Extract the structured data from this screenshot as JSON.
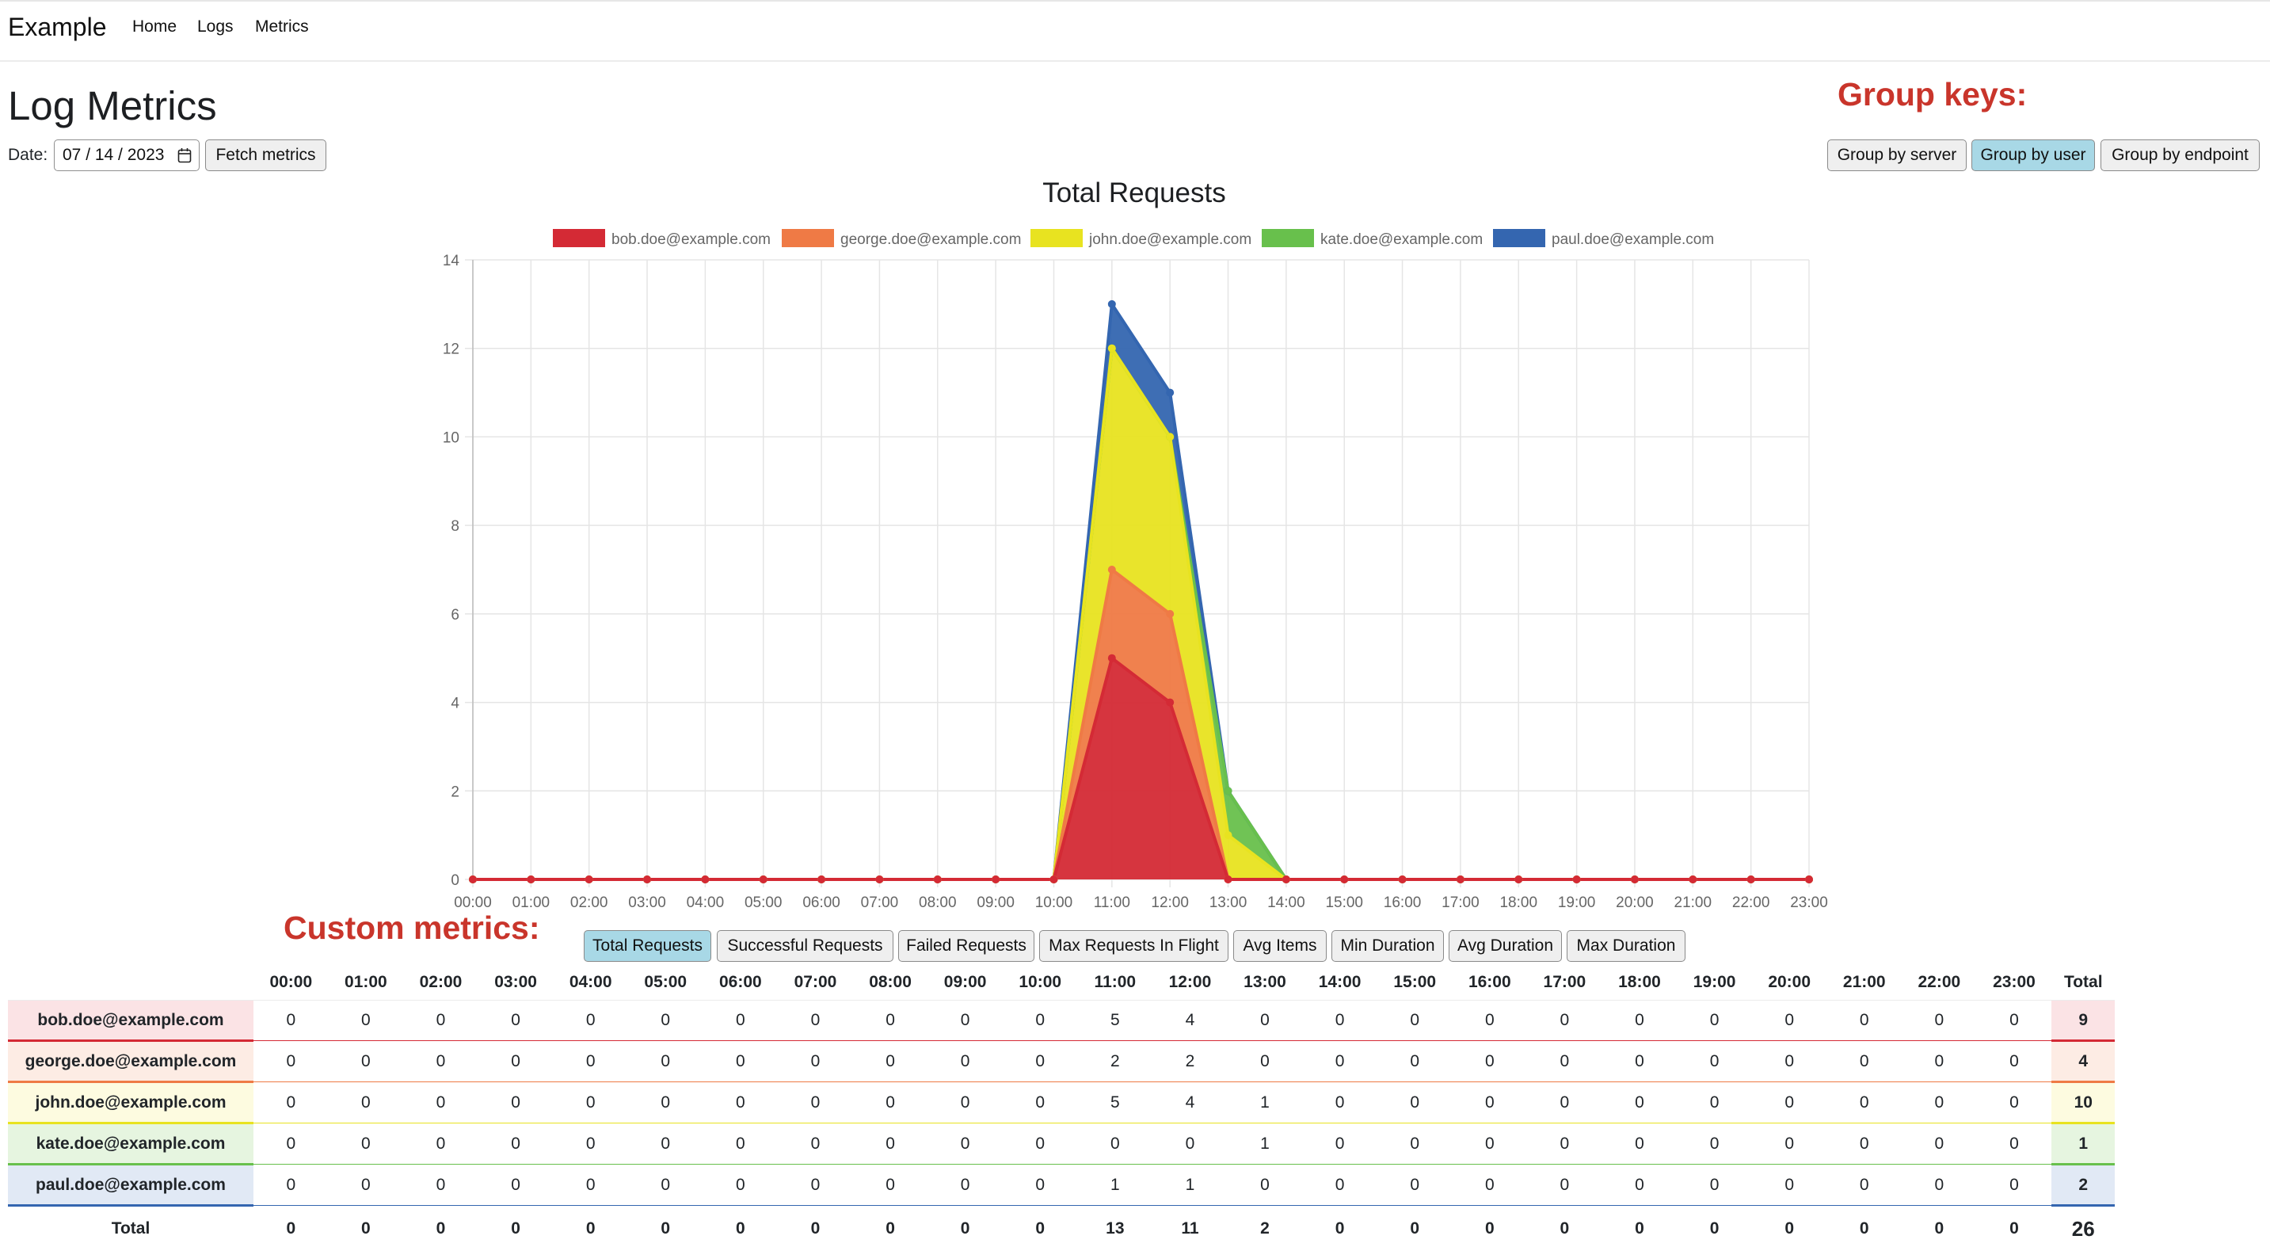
{
  "app": {
    "brand": "Example",
    "nav": [
      "Home",
      "Logs",
      "Metrics"
    ]
  },
  "page": {
    "title": "Log Metrics",
    "date_label": "Date:",
    "date_value": "07 / 14 / 2023",
    "fetch_button": "Fetch metrics"
  },
  "annotations": {
    "group_keys": "Group keys:",
    "custom_metrics": "Custom metrics:"
  },
  "group_buttons": [
    {
      "label": "Group by server",
      "active": false
    },
    {
      "label": "Group by user",
      "active": true
    },
    {
      "label": "Group by endpoint",
      "active": false
    }
  ],
  "metric_buttons": [
    {
      "label": "Total Requests",
      "active": true
    },
    {
      "label": "Successful Requests",
      "active": false
    },
    {
      "label": "Failed Requests",
      "active": false
    },
    {
      "label": "Max Requests In Flight",
      "active": false
    },
    {
      "label": "Avg Items",
      "active": false
    },
    {
      "label": "Min Duration",
      "active": false
    },
    {
      "label": "Avg Duration",
      "active": false
    },
    {
      "label": "Max Duration",
      "active": false
    }
  ],
  "chart_data": {
    "type": "area",
    "stacked": true,
    "title": "Total Requests",
    "xlabel": "",
    "ylabel": "",
    "legend_position": "top",
    "grid": true,
    "ylim": [
      0,
      14
    ],
    "yticks": [
      0,
      2,
      4,
      6,
      8,
      10,
      12,
      14
    ],
    "categories": [
      "00:00",
      "01:00",
      "02:00",
      "03:00",
      "04:00",
      "05:00",
      "06:00",
      "07:00",
      "08:00",
      "09:00",
      "10:00",
      "11:00",
      "12:00",
      "13:00",
      "14:00",
      "15:00",
      "16:00",
      "17:00",
      "18:00",
      "19:00",
      "20:00",
      "21:00",
      "22:00",
      "23:00"
    ],
    "series": [
      {
        "name": "bob.doe@example.com",
        "color": "#d42a35",
        "values": [
          0,
          0,
          0,
          0,
          0,
          0,
          0,
          0,
          0,
          0,
          0,
          5,
          4,
          0,
          0,
          0,
          0,
          0,
          0,
          0,
          0,
          0,
          0,
          0
        ]
      },
      {
        "name": "george.doe@example.com",
        "color": "#ef7a45",
        "values": [
          0,
          0,
          0,
          0,
          0,
          0,
          0,
          0,
          0,
          0,
          0,
          2,
          2,
          0,
          0,
          0,
          0,
          0,
          0,
          0,
          0,
          0,
          0,
          0
        ]
      },
      {
        "name": "john.doe@example.com",
        "color": "#e8e320",
        "values": [
          0,
          0,
          0,
          0,
          0,
          0,
          0,
          0,
          0,
          0,
          0,
          5,
          4,
          1,
          0,
          0,
          0,
          0,
          0,
          0,
          0,
          0,
          0,
          0
        ]
      },
      {
        "name": "kate.doe@example.com",
        "color": "#68c04c",
        "values": [
          0,
          0,
          0,
          0,
          0,
          0,
          0,
          0,
          0,
          0,
          0,
          0,
          0,
          1,
          0,
          0,
          0,
          0,
          0,
          0,
          0,
          0,
          0,
          0
        ]
      },
      {
        "name": "paul.doe@example.com",
        "color": "#3466b0",
        "values": [
          0,
          0,
          0,
          0,
          0,
          0,
          0,
          0,
          0,
          0,
          0,
          1,
          1,
          0,
          0,
          0,
          0,
          0,
          0,
          0,
          0,
          0,
          0,
          0
        ]
      }
    ]
  },
  "table": {
    "total_header": "Total",
    "total_row_label": "Total",
    "rows": [
      {
        "label": "bob.doe@example.com",
        "total": "9",
        "bg": "#fbe3e5",
        "line": "#d42a35"
      },
      {
        "label": "george.doe@example.com",
        "total": "4",
        "bg": "#fdece4",
        "line": "#ef7a45"
      },
      {
        "label": "john.doe@example.com",
        "total": "10",
        "bg": "#fdfbe0",
        "line": "#e8e320"
      },
      {
        "label": "kate.doe@example.com",
        "total": "1",
        "bg": "#e6f5e0",
        "line": "#68c04c"
      },
      {
        "label": "paul.doe@example.com",
        "total": "2",
        "bg": "#e1e9f5",
        "line": "#3466b0"
      }
    ],
    "column_totals": [
      "0",
      "0",
      "0",
      "0",
      "0",
      "0",
      "0",
      "0",
      "0",
      "0",
      "0",
      "13",
      "11",
      "2",
      "0",
      "0",
      "0",
      "0",
      "0",
      "0",
      "0",
      "0",
      "0",
      "0"
    ],
    "grand_total": "26"
  }
}
